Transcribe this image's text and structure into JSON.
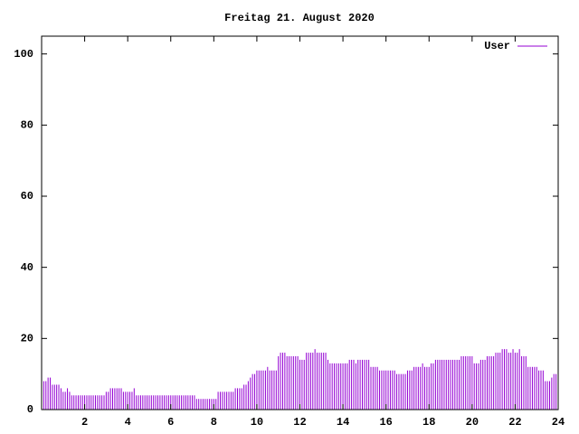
{
  "chart_data": {
    "type": "impulses",
    "title": "Freitag 21. August 2020",
    "xlim": [
      0,
      24
    ],
    "ylim": [
      0,
      105
    ],
    "xticks": [
      2,
      4,
      6,
      8,
      10,
      12,
      14,
      16,
      18,
      20,
      22,
      24
    ],
    "yticks": [
      0,
      20,
      40,
      60,
      80,
      100
    ],
    "legend": "top-right",
    "series": [
      {
        "name": "User",
        "color": "#9400d3",
        "x": [
          0,
          0.1,
          0.2,
          0.3,
          0.4,
          0.5,
          0.6,
          0.7,
          0.8,
          0.9,
          1,
          1.1,
          1.2,
          1.3,
          1.4,
          1.5,
          1.6,
          1.7,
          1.8,
          1.9,
          2,
          2.1,
          2.2,
          2.3,
          2.4,
          2.5,
          2.6,
          2.7,
          2.8,
          2.9,
          3,
          3.1,
          3.2,
          3.3,
          3.4,
          3.5,
          3.6,
          3.7,
          3.8,
          3.9,
          4,
          4.1,
          4.2,
          4.3,
          4.4,
          4.5,
          4.6,
          4.7,
          4.8,
          4.9,
          5,
          5.1,
          5.2,
          5.3,
          5.4,
          5.5,
          5.6,
          5.7,
          5.8,
          5.9,
          6,
          6.1,
          6.2,
          6.3,
          6.4,
          6.5,
          6.6,
          6.7,
          6.8,
          6.9,
          7,
          7.1,
          7.2,
          7.3,
          7.4,
          7.5,
          7.6,
          7.7,
          7.8,
          7.9,
          8,
          8.1,
          8.2,
          8.3,
          8.4,
          8.5,
          8.6,
          8.7,
          8.8,
          8.9,
          9,
          9.1,
          9.2,
          9.3,
          9.4,
          9.5,
          9.6,
          9.7,
          9.8,
          9.9,
          10,
          10.1,
          10.2,
          10.3,
          10.4,
          10.5,
          10.6,
          10.7,
          10.8,
          10.9,
          11,
          11.1,
          11.2,
          11.3,
          11.4,
          11.5,
          11.6,
          11.7,
          11.8,
          11.9,
          12,
          12.1,
          12.2,
          12.3,
          12.4,
          12.5,
          12.6,
          12.7,
          12.8,
          12.9,
          13,
          13.1,
          13.2,
          13.3,
          13.4,
          13.5,
          13.6,
          13.7,
          13.8,
          13.9,
          14,
          14.1,
          14.2,
          14.3,
          14.4,
          14.5,
          14.6,
          14.7,
          14.8,
          14.9,
          15,
          15.1,
          15.2,
          15.3,
          15.4,
          15.5,
          15.6,
          15.7,
          15.8,
          15.9,
          16,
          16.1,
          16.2,
          16.3,
          16.4,
          16.5,
          16.6,
          16.7,
          16.8,
          16.9,
          17,
          17.1,
          17.2,
          17.3,
          17.4,
          17.5,
          17.6,
          17.7,
          17.8,
          17.9,
          18,
          18.1,
          18.2,
          18.3,
          18.4,
          18.5,
          18.6,
          18.7,
          18.8,
          18.9,
          19,
          19.1,
          19.2,
          19.3,
          19.4,
          19.5,
          19.6,
          19.7,
          19.8,
          19.9,
          20,
          20.1,
          20.2,
          20.3,
          20.4,
          20.5,
          20.6,
          20.7,
          20.8,
          20.9,
          21,
          21.1,
          21.2,
          21.3,
          21.4,
          21.5,
          21.6,
          21.7,
          21.8,
          21.9,
          22,
          22.1,
          22.2,
          22.3,
          22.4,
          22.5,
          22.6,
          22.7,
          22.8,
          22.9,
          23,
          23.1,
          23.2,
          23.3,
          23.4,
          23.5,
          23.6,
          23.7,
          23.8,
          23.9
        ],
        "values": [
          8,
          8,
          8,
          9,
          9,
          7,
          7,
          7,
          7,
          6,
          5,
          5,
          6,
          5,
          4,
          4,
          4,
          4,
          4,
          4,
          4,
          4,
          4,
          4,
          4,
          4,
          4,
          4,
          4,
          4,
          5,
          5,
          6,
          6,
          6,
          6,
          6,
          6,
          5,
          5,
          5,
          5,
          5,
          6,
          4,
          4,
          4,
          4,
          4,
          4,
          4,
          4,
          4,
          4,
          4,
          4,
          4,
          4,
          4,
          4,
          4,
          4,
          4,
          4,
          4,
          4,
          4,
          4,
          4,
          4,
          4,
          4,
          3,
          3,
          3,
          3,
          3,
          3,
          3,
          3,
          3,
          3,
          5,
          5,
          5,
          5,
          5,
          5,
          5,
          5,
          6,
          6,
          6,
          6,
          7,
          7,
          8,
          9,
          10,
          10,
          11,
          11,
          11,
          11,
          11,
          12,
          11,
          11,
          11,
          11,
          15,
          16,
          16,
          16,
          15,
          15,
          15,
          15,
          15,
          15,
          14,
          14,
          14,
          16,
          16,
          16,
          16,
          17,
          16,
          16,
          16,
          16,
          16,
          14,
          13,
          13,
          13,
          13,
          13,
          13,
          13,
          13,
          13,
          14,
          14,
          14,
          13,
          14,
          14,
          14,
          14,
          14,
          14,
          12,
          12,
          12,
          12,
          11,
          11,
          11,
          11,
          11,
          11,
          11,
          11,
          10,
          10,
          10,
          10,
          10,
          11,
          11,
          11,
          12,
          12,
          12,
          12,
          13,
          12,
          12,
          12,
          13,
          13,
          14,
          14,
          14,
          14,
          14,
          14,
          14,
          14,
          14,
          14,
          14,
          14,
          15,
          15,
          15,
          15,
          15,
          15,
          13,
          13,
          13,
          14,
          14,
          14,
          15,
          15,
          15,
          15,
          16,
          16,
          16,
          17,
          17,
          17,
          16,
          16,
          17,
          16,
          16,
          17,
          15,
          15,
          15,
          12,
          12,
          12,
          12,
          12,
          11,
          11,
          11,
          8,
          8,
          8,
          9,
          10,
          10
        ]
      }
    ]
  }
}
